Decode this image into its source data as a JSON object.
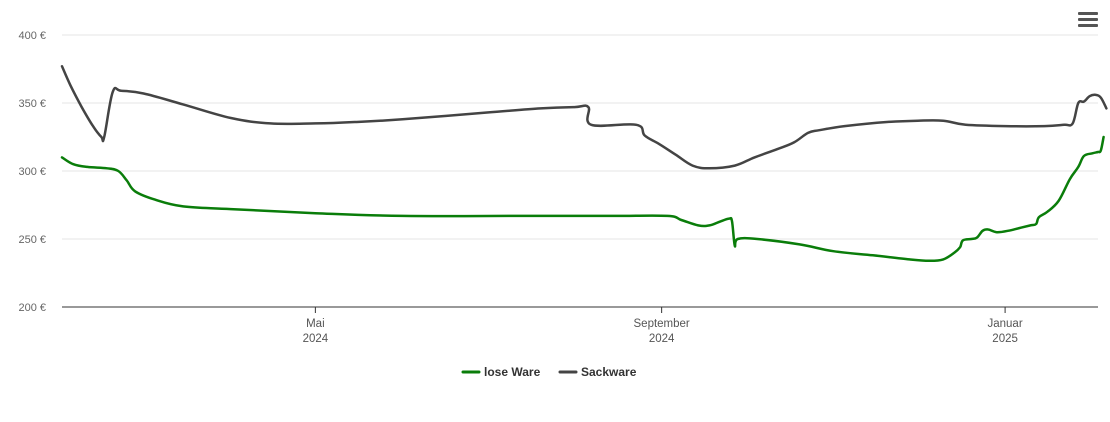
{
  "chart_data": {
    "type": "line",
    "title": "",
    "xlabel": "",
    "ylabel": "",
    "x_range": [
      "2024-02-01",
      "2025-02-03"
    ],
    "ylim": [
      200,
      400
    ],
    "yticks": [
      200,
      250,
      300,
      350,
      400
    ],
    "ytick_labels": [
      "200 €",
      "250 €",
      "300 €",
      "350 €",
      "400 €"
    ],
    "xticks": [
      {
        "date": "2024-05-01",
        "label_line1": "Mai",
        "label_line2": "2024"
      },
      {
        "date": "2024-09-01",
        "label_line1": "September",
        "label_line2": "2024"
      },
      {
        "date": "2025-01-01",
        "label_line1": "Januar",
        "label_line2": "2025"
      }
    ],
    "grid": true,
    "legend_position": "bottom-center",
    "series": [
      {
        "name": "lose Ware",
        "color": "#0a7d0a",
        "points": [
          [
            "2024-02-01",
            310
          ],
          [
            "2024-02-05",
            305
          ],
          [
            "2024-02-10",
            303
          ],
          [
            "2024-02-17",
            302
          ],
          [
            "2024-02-21",
            300
          ],
          [
            "2024-02-24",
            293
          ],
          [
            "2024-02-27",
            285
          ],
          [
            "2024-03-05",
            279
          ],
          [
            "2024-03-15",
            274
          ],
          [
            "2024-04-01",
            272
          ],
          [
            "2024-05-01",
            269
          ],
          [
            "2024-06-01",
            267
          ],
          [
            "2024-07-15",
            267
          ],
          [
            "2024-08-15",
            267
          ],
          [
            "2024-09-03",
            267
          ],
          [
            "2024-09-08",
            264
          ],
          [
            "2024-09-14",
            260
          ],
          [
            "2024-09-18",
            260
          ],
          [
            "2024-09-22",
            263
          ],
          [
            "2024-09-25",
            265
          ],
          [
            "2024-09-26",
            263
          ],
          [
            "2024-09-27",
            245
          ],
          [
            "2024-09-28",
            250
          ],
          [
            "2024-10-05",
            250
          ],
          [
            "2024-10-20",
            246
          ],
          [
            "2024-11-01",
            241
          ],
          [
            "2024-11-15",
            238
          ],
          [
            "2024-11-28",
            235
          ],
          [
            "2024-12-05",
            234
          ],
          [
            "2024-12-10",
            235
          ],
          [
            "2024-12-14",
            240
          ],
          [
            "2024-12-16",
            244
          ],
          [
            "2024-12-17",
            249
          ],
          [
            "2024-12-20",
            250
          ],
          [
            "2024-12-22",
            251
          ],
          [
            "2024-12-24",
            256
          ],
          [
            "2024-12-26",
            257
          ],
          [
            "2024-12-29",
            255
          ],
          [
            "2025-01-02",
            256
          ],
          [
            "2025-01-06",
            258
          ],
          [
            "2025-01-10",
            260
          ],
          [
            "2025-01-12",
            261
          ],
          [
            "2025-01-13",
            266
          ],
          [
            "2025-01-16",
            270
          ],
          [
            "2025-01-20",
            278
          ],
          [
            "2025-01-24",
            294
          ],
          [
            "2025-01-27",
            303
          ],
          [
            "2025-01-29",
            311
          ],
          [
            "2025-02-01",
            313
          ],
          [
            "2025-02-03",
            314
          ],
          [
            "2025-02-04",
            315
          ],
          [
            "2025-02-05",
            325
          ]
        ]
      },
      {
        "name": "Sackware",
        "color": "#444444",
        "points": [
          [
            "2024-02-01",
            377
          ],
          [
            "2024-02-04",
            363
          ],
          [
            "2024-02-08",
            347
          ],
          [
            "2024-02-12",
            333
          ],
          [
            "2024-02-15",
            325
          ],
          [
            "2024-02-16",
            325
          ],
          [
            "2024-02-19",
            358
          ],
          [
            "2024-02-22",
            359
          ],
          [
            "2024-03-01",
            357
          ],
          [
            "2024-03-15",
            349
          ],
          [
            "2024-04-01",
            339
          ],
          [
            "2024-04-15",
            335
          ],
          [
            "2024-05-01",
            335
          ],
          [
            "2024-05-15",
            336
          ],
          [
            "2024-06-01",
            338
          ],
          [
            "2024-07-01",
            343
          ],
          [
            "2024-07-20",
            346
          ],
          [
            "2024-08-01",
            347
          ],
          [
            "2024-08-06",
            347
          ],
          [
            "2024-08-07",
            334
          ],
          [
            "2024-08-23",
            334
          ],
          [
            "2024-08-26",
            326
          ],
          [
            "2024-08-31",
            320
          ],
          [
            "2024-09-06",
            312
          ],
          [
            "2024-09-12",
            304
          ],
          [
            "2024-09-18",
            302
          ],
          [
            "2024-09-27",
            304
          ],
          [
            "2024-10-04",
            310
          ],
          [
            "2024-10-12",
            316
          ],
          [
            "2024-10-18",
            321
          ],
          [
            "2024-10-23",
            328
          ],
          [
            "2024-10-27",
            330
          ],
          [
            "2024-11-05",
            333
          ],
          [
            "2024-11-20",
            336
          ],
          [
            "2024-12-01",
            337
          ],
          [
            "2024-12-10",
            337
          ],
          [
            "2024-12-18",
            334
          ],
          [
            "2025-01-01",
            333
          ],
          [
            "2025-01-15",
            333
          ],
          [
            "2025-01-22",
            334
          ],
          [
            "2025-01-25",
            335
          ],
          [
            "2025-01-27",
            350
          ],
          [
            "2025-01-29",
            351
          ],
          [
            "2025-01-31",
            355
          ],
          [
            "2025-02-02",
            356
          ],
          [
            "2025-02-04",
            354
          ],
          [
            "2025-02-06",
            346
          ]
        ]
      }
    ]
  },
  "toolbar": {
    "menu_icon": "hamburger-menu-icon"
  }
}
